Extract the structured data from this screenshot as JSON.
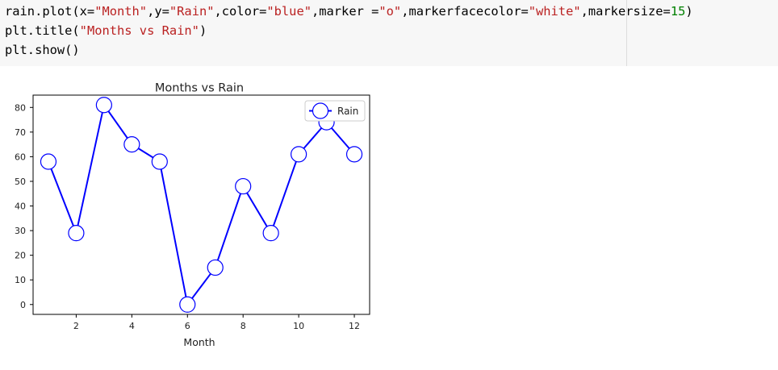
{
  "code": {
    "lines": [
      [
        {
          "t": "rain.plot(x=",
          "c": "plain"
        },
        {
          "t": "\"Month\"",
          "c": "str"
        },
        {
          "t": ",y=",
          "c": "plain"
        },
        {
          "t": "\"Rain\"",
          "c": "str"
        },
        {
          "t": ",color=",
          "c": "plain"
        },
        {
          "t": "\"blue\"",
          "c": "str"
        },
        {
          "t": ",marker =",
          "c": "plain"
        },
        {
          "t": "\"o\"",
          "c": "str"
        },
        {
          "t": ",markerfacecolor=",
          "c": "plain"
        },
        {
          "t": "\"white\"",
          "c": "str"
        },
        {
          "t": ",markersize=",
          "c": "plain"
        },
        {
          "t": "15",
          "c": "num"
        },
        {
          "t": ")",
          "c": "plain"
        }
      ],
      [
        {
          "t": "plt.title(",
          "c": "plain"
        },
        {
          "t": "\"Months vs Rain\"",
          "c": "str"
        },
        {
          "t": ")",
          "c": "plain"
        }
      ],
      [
        {
          "t": "plt.show()",
          "c": "plain"
        }
      ]
    ]
  },
  "chart_data": {
    "type": "line",
    "title": "Months vs Rain",
    "xlabel": "Month",
    "ylabel": "",
    "x": [
      1,
      2,
      3,
      4,
      5,
      6,
      7,
      8,
      9,
      10,
      11,
      12
    ],
    "series": [
      {
        "name": "Rain",
        "values": [
          58,
          29,
          81,
          65,
          58,
          0,
          15,
          48,
          29,
          61,
          74,
          61
        ]
      }
    ],
    "xticks": [
      2,
      4,
      6,
      8,
      10,
      12
    ],
    "yticks": [
      0,
      10,
      20,
      30,
      40,
      50,
      60,
      70,
      80
    ],
    "xlim": [
      0.45,
      12.55
    ],
    "ylim": [
      -4,
      85
    ],
    "grid": false,
    "legend_position": "top-right",
    "line_color": "#0000ff",
    "marker_face_color": "#ffffff",
    "marker": "o"
  }
}
